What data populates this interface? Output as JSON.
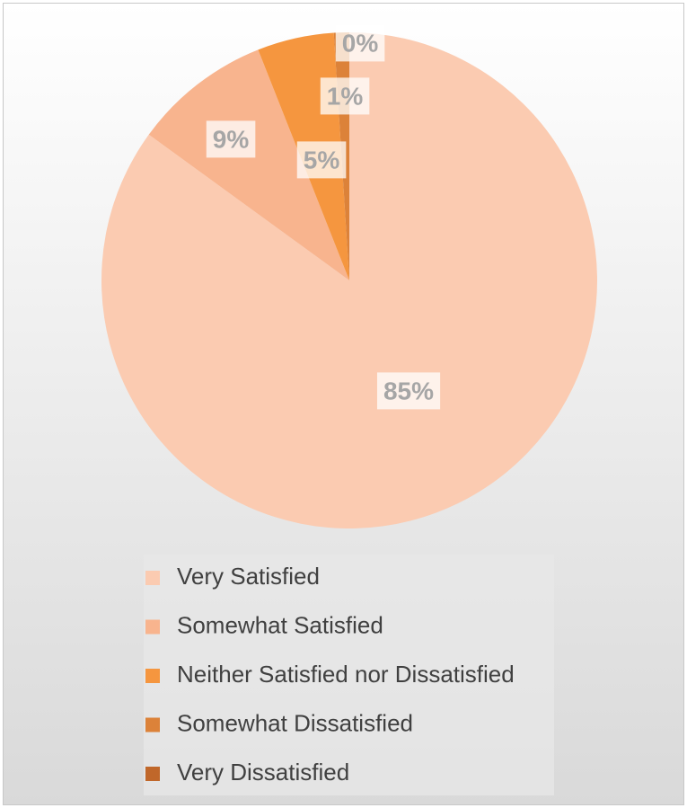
{
  "chart_data": {
    "type": "pie",
    "categories": [
      "Very Satisfied",
      "Somewhat Satisfied",
      "Neither Satisfied nor Dissatisfied",
      "Somewhat Dissatisfied",
      "Very Dissatisfied"
    ],
    "values": [
      85,
      9,
      5,
      1,
      0
    ],
    "value_labels": [
      "85%",
      "9%",
      "5%",
      "1%",
      "0%"
    ],
    "colors": [
      "#fbcbb1",
      "#f8b48e",
      "#f5963f",
      "#dc8239",
      "#c0672a"
    ],
    "legend": "bottom"
  }
}
